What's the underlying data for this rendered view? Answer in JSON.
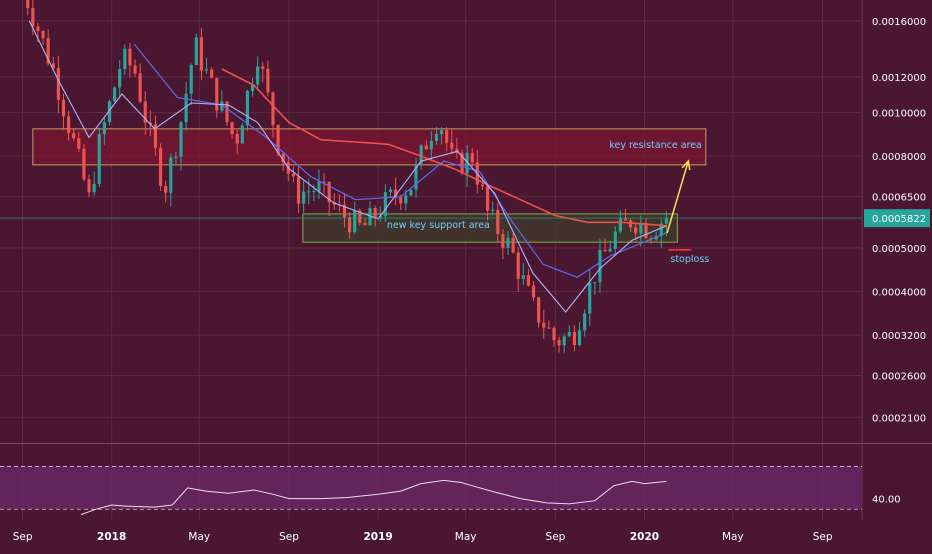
{
  "colors": {
    "background": "#4b1730",
    "grid": "#5e2a45",
    "up": "#26a69a",
    "down": "#ef5350",
    "axis_text": "#ffffff",
    "price_badge": "#26a69a",
    "ma_fast": "#a7b6ff",
    "ma_mid": "#5b6cf0",
    "ma_slow": "#ef4f4f",
    "resistance_fill": "#7a1531",
    "resistance_border": "#c0a060",
    "support_fill": "#3f3a2a",
    "support_border": "#7fb04f",
    "rsi_band": "#6a2a6a",
    "rsi_line": "#e8dff0",
    "arrow": "#ffe24a",
    "stoploss": "#ff3a3a",
    "annotation_text": "#6ed0ff"
  },
  "chart_data": {
    "type": "candlestick",
    "scale": "log",
    "y_tick_labels": [
      "0.0016000",
      "0.0012000",
      "0.0010000",
      "0.0008000",
      "0.0006500",
      "0.0005000",
      "0.0004000",
      "0.0003200",
      "0.0002600",
      "0.0002100"
    ],
    "y_ticks": [
      0.0016,
      0.0012,
      0.001,
      0.0008,
      0.00065,
      0.0005,
      0.0004,
      0.00032,
      0.00026,
      0.00021
    ],
    "x_tick_labels": [
      "Sep",
      "2018",
      "May",
      "Sep",
      "2019",
      "May",
      "Sep",
      "2020",
      "May",
      "Sep"
    ],
    "x_ticks": [
      "2017-09-01",
      "2018-01-01",
      "2018-05-01",
      "2018-09-01",
      "2019-01-01",
      "2019-05-01",
      "2019-09-01",
      "2020-01-01",
      "2020-05-01",
      "2020-09-01"
    ],
    "x_range": [
      "2017-08-01",
      "2020-10-25"
    ],
    "y_range": [
      0.000185,
      0.00178
    ],
    "current_price": "0.0005822",
    "current_price_value": 0.0005822,
    "grid": true,
    "close_points": [
      [
        "2017-09-01",
        0.0019
      ],
      [
        "2017-10-15",
        0.00122
      ],
      [
        "2017-11-15",
        0.0008
      ],
      [
        "2017-12-01",
        0.00064
      ],
      [
        "2017-12-15",
        0.00085
      ],
      [
        "2018-01-15",
        0.00132
      ],
      [
        "2018-02-01",
        0.00125
      ],
      [
        "2018-02-20",
        0.00092
      ],
      [
        "2018-03-15",
        0.00068
      ],
      [
        "2018-04-05",
        0.00094
      ],
      [
        "2018-04-25",
        0.00142
      ],
      [
        "2018-05-20",
        0.00112
      ],
      [
        "2018-06-20",
        0.00086
      ],
      [
        "2018-07-20",
        0.00136
      ],
      [
        "2018-08-15",
        0.00088
      ],
      [
        "2018-09-10",
        0.00066
      ],
      [
        "2018-10-10",
        0.00068
      ],
      [
        "2018-11-10",
        0.0006
      ],
      [
        "2018-12-10",
        0.00055
      ],
      [
        "2019-01-15",
        0.00064
      ],
      [
        "2019-02-15",
        0.00069
      ],
      [
        "2019-03-10",
        0.00088
      ],
      [
        "2019-03-25",
        0.00098
      ],
      [
        "2019-04-15",
        0.00076
      ],
      [
        "2019-05-10",
        0.0008
      ],
      [
        "2019-06-01",
        0.00059
      ],
      [
        "2019-07-01",
        0.0005
      ],
      [
        "2019-08-01",
        0.00037
      ],
      [
        "2019-09-01",
        0.00031
      ],
      [
        "2019-09-25",
        0.00032
      ],
      [
        "2019-10-25",
        0.00044
      ],
      [
        "2019-11-20",
        0.00053
      ],
      [
        "2019-12-15",
        0.00058
      ],
      [
        "2020-01-10",
        0.00055
      ],
      [
        "2020-01-31",
        0.000585
      ]
    ],
    "ma_fast_points": [
      [
        "2017-09-10",
        0.0016
      ],
      [
        "2017-10-20",
        0.00118
      ],
      [
        "2017-12-01",
        0.00088
      ],
      [
        "2018-01-15",
        0.0011
      ],
      [
        "2018-03-01",
        0.00092
      ],
      [
        "2018-04-20",
        0.00105
      ],
      [
        "2018-06-10",
        0.00104
      ],
      [
        "2018-07-20",
        0.00095
      ],
      [
        "2018-09-01",
        0.00075
      ],
      [
        "2018-11-01",
        0.00063
      ],
      [
        "2019-01-01",
        0.00058
      ],
      [
        "2019-03-01",
        0.00078
      ],
      [
        "2019-04-20",
        0.00082
      ],
      [
        "2019-06-10",
        0.00066
      ],
      [
        "2019-08-01",
        0.00044
      ],
      [
        "2019-09-15",
        0.00036
      ],
      [
        "2019-11-01",
        0.00045
      ],
      [
        "2019-12-15",
        0.00052
      ],
      [
        "2020-01-31",
        0.00056
      ]
    ],
    "ma_mid_points": [
      [
        "2018-02-01",
        0.00142
      ],
      [
        "2018-04-01",
        0.00108
      ],
      [
        "2018-06-01",
        0.00104
      ],
      [
        "2018-08-01",
        0.00088
      ],
      [
        "2018-10-01",
        0.00072
      ],
      [
        "2018-12-01",
        0.00064
      ],
      [
        "2019-02-01",
        0.00065
      ],
      [
        "2019-04-01",
        0.00078
      ],
      [
        "2019-05-20",
        0.00074
      ],
      [
        "2019-07-01",
        0.00058
      ],
      [
        "2019-08-15",
        0.00046
      ],
      [
        "2019-10-01",
        0.00043
      ],
      [
        "2019-11-15",
        0.00048
      ],
      [
        "2020-01-31",
        0.00054
      ]
    ],
    "ma_slow_points": [
      [
        "2018-06-01",
        0.00125
      ],
      [
        "2018-07-15",
        0.00115
      ],
      [
        "2018-09-01",
        0.00095
      ],
      [
        "2018-10-15",
        0.00087
      ],
      [
        "2018-12-01",
        0.00086
      ],
      [
        "2019-01-15",
        0.00085
      ],
      [
        "2019-03-01",
        0.0008
      ],
      [
        "2019-04-15",
        0.00075
      ],
      [
        "2019-06-01",
        0.00069
      ],
      [
        "2019-07-15",
        0.00064
      ],
      [
        "2019-09-01",
        0.00059
      ],
      [
        "2019-10-15",
        0.00057
      ],
      [
        "2019-12-01",
        0.00057
      ],
      [
        "2020-01-31",
        0.00056
      ]
    ],
    "resistance_zone": {
      "label": "key resistance area",
      "from": "2017-09-15",
      "to": "2020-03-25",
      "low": 0.000765,
      "high": 0.00092
    },
    "support_zone": {
      "label": "new key support area",
      "from": "2018-09-20",
      "to": "2020-02-15",
      "low": 0.000515,
      "high": 0.000595
    },
    "stoploss": {
      "label": "stoploss",
      "from": "2020-01-31",
      "to": "2020-03-05",
      "value": 0.000495
    },
    "projection_arrow": {
      "from_date": "2020-02-01",
      "from_value": 0.00054,
      "to_date": "2020-03-01",
      "to_value": 0.00078
    },
    "rsi": {
      "tick_label": "40.00",
      "y_range": [
        20,
        90
      ],
      "bands": [
        70,
        30
      ],
      "band_fill": [
        30,
        70
      ],
      "tick_value": 40,
      "points": [
        [
          "2017-11-20",
          25
        ],
        [
          "2017-12-10",
          30
        ],
        [
          "2018-01-01",
          34
        ],
        [
          "2018-01-20",
          33
        ],
        [
          "2018-03-01",
          32
        ],
        [
          "2018-03-25",
          34
        ],
        [
          "2018-04-15",
          50
        ],
        [
          "2018-05-10",
          47
        ],
        [
          "2018-06-10",
          45
        ],
        [
          "2018-07-15",
          48
        ],
        [
          "2018-08-10",
          44
        ],
        [
          "2018-09-01",
          40
        ],
        [
          "2018-10-15",
          40
        ],
        [
          "2018-11-20",
          41
        ],
        [
          "2019-01-01",
          44
        ],
        [
          "2019-02-01",
          47
        ],
        [
          "2019-03-01",
          54
        ],
        [
          "2019-04-01",
          57
        ],
        [
          "2019-04-25",
          55
        ],
        [
          "2019-05-10",
          52
        ],
        [
          "2019-06-10",
          46
        ],
        [
          "2019-07-15",
          40
        ],
        [
          "2019-08-20",
          36
        ],
        [
          "2019-09-20",
          35
        ],
        [
          "2019-10-25",
          38
        ],
        [
          "2019-11-20",
          52
        ],
        [
          "2019-12-15",
          56
        ],
        [
          "2020-01-01",
          54
        ],
        [
          "2020-01-31",
          56
        ]
      ]
    }
  }
}
